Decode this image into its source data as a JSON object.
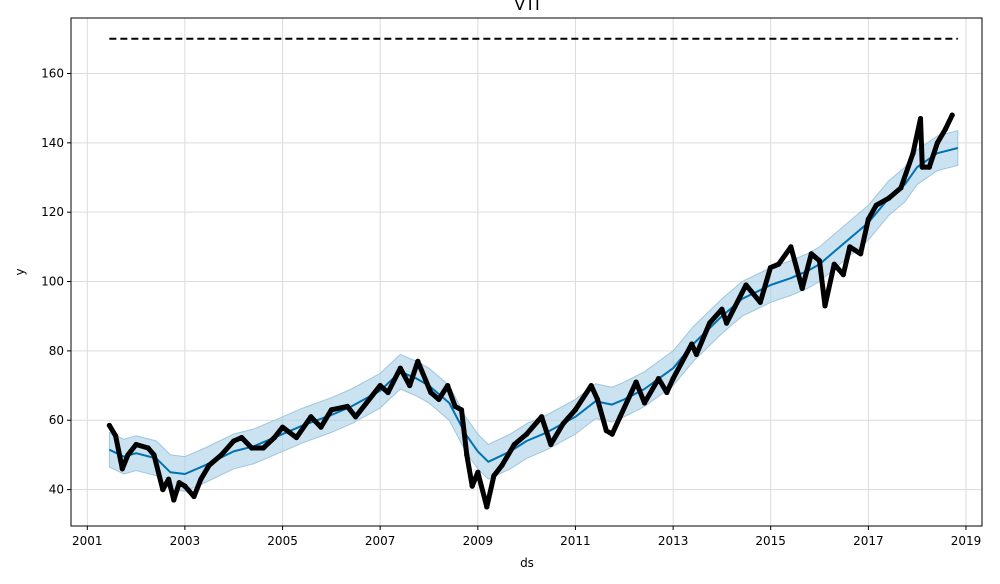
{
  "chart_data": {
    "type": "line",
    "title": "VTI",
    "xlabel": "ds",
    "ylabel": "y",
    "x_range": [
      "2000-09-01",
      "2019-05-01"
    ],
    "ylim": [
      29.5,
      176
    ],
    "grid": true,
    "x_ticks": [
      "2001",
      "2003",
      "2005",
      "2007",
      "2009",
      "2011",
      "2013",
      "2015",
      "2017",
      "2019"
    ],
    "y_ticks": [
      40,
      60,
      80,
      100,
      120,
      140,
      160
    ],
    "cap": {
      "value": 170,
      "x": [
        "2001-06-15",
        "2018-11-01"
      ],
      "style": "dashed",
      "color": "#000000"
    },
    "series": [
      {
        "role": "observed",
        "color": "#000000",
        "style": "points",
        "points": [
          [
            "2001-06-15",
            58.5
          ],
          [
            "2001-08-01",
            55.5
          ],
          [
            "2001-09-20",
            46
          ],
          [
            "2001-11-01",
            50
          ],
          [
            "2002-01-01",
            53
          ],
          [
            "2002-04-01",
            52
          ],
          [
            "2002-05-15",
            50
          ],
          [
            "2002-07-20",
            40
          ],
          [
            "2002-09-01",
            43
          ],
          [
            "2002-10-10",
            37
          ],
          [
            "2002-11-20",
            42
          ],
          [
            "2003-01-01",
            41
          ],
          [
            "2003-03-10",
            38
          ],
          [
            "2003-05-01",
            43
          ],
          [
            "2003-07-01",
            47
          ],
          [
            "2003-10-01",
            50
          ],
          [
            "2004-01-01",
            54
          ],
          [
            "2004-03-01",
            55
          ],
          [
            "2004-05-15",
            52
          ],
          [
            "2004-08-10",
            52
          ],
          [
            "2004-11-01",
            55
          ],
          [
            "2005-01-01",
            58
          ],
          [
            "2005-04-15",
            55
          ],
          [
            "2005-08-01",
            61
          ],
          [
            "2005-10-15",
            58
          ],
          [
            "2006-01-01",
            63
          ],
          [
            "2006-05-01",
            64
          ],
          [
            "2006-07-01",
            61
          ],
          [
            "2007-01-01",
            70
          ],
          [
            "2007-03-01",
            68
          ],
          [
            "2007-06-01",
            75
          ],
          [
            "2007-08-10",
            70
          ],
          [
            "2007-10-10",
            77
          ],
          [
            "2008-01-15",
            68
          ],
          [
            "2008-03-15",
            66
          ],
          [
            "2008-05-20",
            70
          ],
          [
            "2008-07-15",
            64
          ],
          [
            "2008-09-01",
            63
          ],
          [
            "2008-10-10",
            50
          ],
          [
            "2008-11-20",
            41
          ],
          [
            "2009-01-01",
            45
          ],
          [
            "2009-03-09",
            35
          ],
          [
            "2009-05-01",
            44
          ],
          [
            "2009-07-01",
            47
          ],
          [
            "2009-10-01",
            53
          ],
          [
            "2010-01-01",
            56
          ],
          [
            "2010-04-23",
            61
          ],
          [
            "2010-07-01",
            53
          ],
          [
            "2010-10-01",
            59
          ],
          [
            "2011-01-01",
            63
          ],
          [
            "2011-04-29",
            70
          ],
          [
            "2011-06-15",
            66
          ],
          [
            "2011-08-20",
            57
          ],
          [
            "2011-10-03",
            56
          ],
          [
            "2011-12-01",
            61
          ],
          [
            "2012-03-30",
            71
          ],
          [
            "2012-06-01",
            65
          ],
          [
            "2012-09-14",
            72
          ],
          [
            "2012-11-15",
            68
          ],
          [
            "2013-01-01",
            72
          ],
          [
            "2013-05-20",
            82
          ],
          [
            "2013-06-24",
            79
          ],
          [
            "2013-10-01",
            88
          ],
          [
            "2014-01-01",
            92
          ],
          [
            "2014-02-05",
            88
          ],
          [
            "2014-06-30",
            99
          ],
          [
            "2014-10-15",
            94
          ],
          [
            "2014-12-30",
            104
          ],
          [
            "2015-03-01",
            105
          ],
          [
            "2015-06-01",
            110
          ],
          [
            "2015-08-25",
            98
          ],
          [
            "2015-11-01",
            108
          ],
          [
            "2016-01-01",
            106
          ],
          [
            "2016-02-11",
            93
          ],
          [
            "2016-04-20",
            105
          ],
          [
            "2016-06-27",
            102
          ],
          [
            "2016-08-15",
            110
          ],
          [
            "2016-11-04",
            108
          ],
          [
            "2017-01-01",
            118
          ],
          [
            "2017-03-01",
            122
          ],
          [
            "2017-06-01",
            124
          ],
          [
            "2017-09-01",
            127
          ],
          [
            "2017-12-01",
            137
          ],
          [
            "2018-01-26",
            147
          ],
          [
            "2018-02-08",
            133
          ],
          [
            "2018-04-02",
            133
          ],
          [
            "2018-06-01",
            140
          ],
          [
            "2018-08-01",
            144
          ],
          [
            "2018-09-20",
            148
          ]
        ]
      },
      {
        "role": "forecast",
        "color": "#0072B2",
        "style": "line",
        "points": [
          [
            "2001-06-15",
            51.5
          ],
          [
            "2001-10-01",
            49.5
          ],
          [
            "2002-01-01",
            50.5
          ],
          [
            "2002-06-01",
            49
          ],
          [
            "2002-09-15",
            45
          ],
          [
            "2003-01-01",
            44.5
          ],
          [
            "2003-06-01",
            47
          ],
          [
            "2004-01-01",
            51
          ],
          [
            "2004-06-01",
            52.5
          ],
          [
            "2005-01-01",
            56
          ],
          [
            "2005-06-01",
            58.5
          ],
          [
            "2006-01-01",
            61.5
          ],
          [
            "2006-06-01",
            64
          ],
          [
            "2007-01-01",
            68.5
          ],
          [
            "2007-06-01",
            74
          ],
          [
            "2007-10-01",
            72
          ],
          [
            "2008-01-01",
            70
          ],
          [
            "2008-06-01",
            65
          ],
          [
            "2008-10-01",
            56
          ],
          [
            "2009-01-01",
            51
          ],
          [
            "2009-03-20",
            48
          ],
          [
            "2009-09-01",
            51
          ],
          [
            "2010-01-01",
            54
          ],
          [
            "2010-06-01",
            56.5
          ],
          [
            "2011-01-01",
            61
          ],
          [
            "2011-06-01",
            65.5
          ],
          [
            "2011-10-01",
            64.5
          ],
          [
            "2012-01-01",
            66
          ],
          [
            "2012-06-01",
            69
          ],
          [
            "2013-01-01",
            75
          ],
          [
            "2013-06-01",
            82
          ],
          [
            "2014-01-01",
            90
          ],
          [
            "2014-06-01",
            95
          ],
          [
            "2015-01-01",
            99
          ],
          [
            "2015-06-01",
            101
          ],
          [
            "2015-10-01",
            103
          ],
          [
            "2016-01-01",
            105
          ],
          [
            "2016-06-01",
            110
          ],
          [
            "2017-01-01",
            117
          ],
          [
            "2017-06-01",
            124
          ],
          [
            "2017-10-01",
            128
          ],
          [
            "2018-01-01",
            133
          ],
          [
            "2018-06-01",
            137
          ],
          [
            "2018-11-01",
            138.5
          ]
        ]
      },
      {
        "role": "uncertainty_interval",
        "color": "#a9cfe6",
        "style": "band",
        "band_width": 5
      }
    ]
  }
}
